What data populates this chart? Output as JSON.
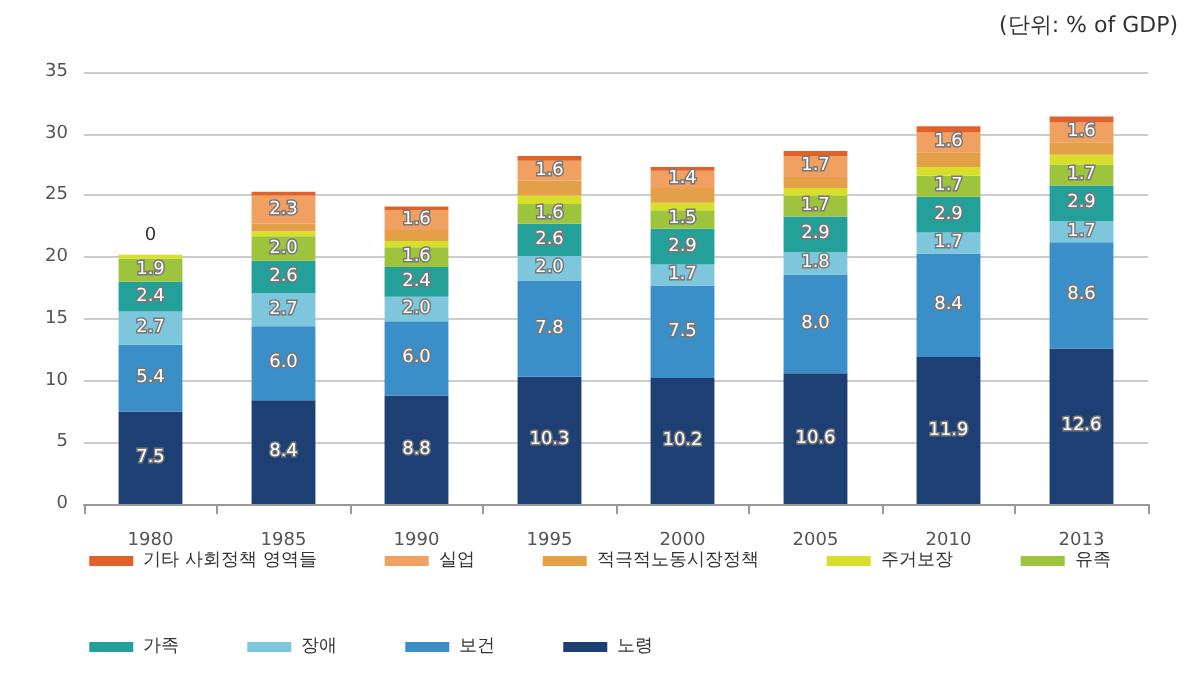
{
  "chart_data": {
    "type": "bar",
    "stacked": true,
    "annotations": [
      "(단위: % of GDP)"
    ],
    "categories": [
      "1980",
      "1985",
      "1990",
      "1995",
      "2000",
      "2005",
      "2010",
      "2013"
    ],
    "ylim": [
      0,
      35
    ],
    "yticks": [
      0,
      5,
      10,
      15,
      20,
      25,
      30,
      35
    ],
    "grid": "y",
    "legend": "bottom",
    "series": [
      {
        "name": "노령",
        "color": "#1d3f73",
        "values": [
          7.5,
          8.4,
          8.8,
          10.3,
          10.2,
          10.6,
          11.9,
          12.6
        ],
        "value_labels": [
          "7.5",
          "8.4",
          "8.8",
          "10.3",
          "10.2",
          "10.6",
          "11.9",
          "12.6"
        ]
      },
      {
        "name": "보건",
        "color": "#3a8fc8",
        "values": [
          5.4,
          6.0,
          6.0,
          7.8,
          7.5,
          8.0,
          8.4,
          8.6
        ],
        "value_labels": [
          "5.4",
          "6.0",
          "6.0",
          "7.8",
          "7.5",
          "8.0",
          "8.4",
          "8.6"
        ]
      },
      {
        "name": "장애",
        "color": "#7dc6dc",
        "values": [
          2.7,
          2.7,
          2.0,
          2.0,
          1.7,
          1.8,
          1.7,
          1.7
        ],
        "value_labels": [
          "2.7",
          "2.7",
          "2.0",
          "2.0",
          "1.7",
          "1.8",
          "1.7",
          "1.7"
        ]
      },
      {
        "name": "가족",
        "color": "#24a09a",
        "values": [
          2.4,
          2.6,
          2.4,
          2.6,
          2.9,
          2.9,
          2.9,
          2.9
        ],
        "value_labels": [
          "2.4",
          "2.6",
          "2.4",
          "2.6",
          "2.9",
          "2.9",
          "2.9",
          "2.9"
        ]
      },
      {
        "name": "유족",
        "color": "#9dc43c",
        "values": [
          1.9,
          2.0,
          1.6,
          1.6,
          1.5,
          1.7,
          1.7,
          1.7
        ],
        "value_labels": [
          "1.9",
          "2.0",
          "1.6",
          "1.6",
          "1.5",
          "1.7",
          "1.7",
          "1.7"
        ]
      },
      {
        "name": "주거보장",
        "color": "#d8df2a",
        "values": [
          0.3,
          0.4,
          0.5,
          0.7,
          0.6,
          0.6,
          0.7,
          0.8
        ]
      },
      {
        "name": "적극적노동시장정책",
        "color": "#e3a048",
        "values": [
          0,
          0.6,
          0.9,
          1.2,
          1.2,
          0.9,
          1.2,
          1.0
        ]
      },
      {
        "name": "실업",
        "color": "#f0a060",
        "values": [
          0,
          2.3,
          1.6,
          1.6,
          1.4,
          1.7,
          1.6,
          1.6
        ],
        "value_labels": [
          "0",
          "2.3",
          "1.6",
          "1.6",
          "1.4",
          "1.7",
          "1.6",
          "1.6"
        ]
      },
      {
        "name": "기타 사회정책 영역들",
        "color": "#e0622a",
        "values": [
          0,
          0.3,
          0.3,
          0.4,
          0.3,
          0.4,
          0.5,
          0.5
        ]
      }
    ]
  }
}
